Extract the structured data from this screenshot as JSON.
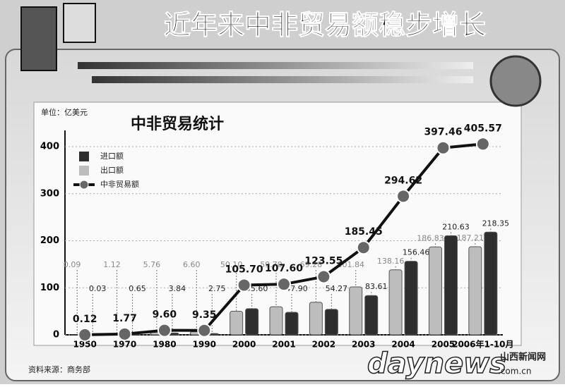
{
  "header": {
    "title": "近年来中非贸易额稳步增长"
  },
  "chart_data": {
    "type": "bar-line",
    "title": "中非贸易统计",
    "unit": "单位：亿美元",
    "categories": [
      "1950",
      "1970",
      "1980",
      "1990",
      "2000",
      "2001",
      "2002",
      "2003",
      "2004",
      "2005",
      "2006年1-10月"
    ],
    "series": [
      {
        "name": "进口额",
        "color": "#2e2e2e",
        "type": "bar",
        "values": [
          0.03,
          0.65,
          3.84,
          2.75,
          55.6,
          47.9,
          54.27,
          83.61,
          156.46,
          210.63,
          218.35
        ],
        "value_labels": [
          "0.03",
          "0.65",
          "3.84",
          "2.75",
          "55.60",
          "47.90",
          "54.27",
          "83.61",
          "156.46",
          "210.63",
          "218.35"
        ]
      },
      {
        "name": "出口额",
        "color": "#bdbdbd",
        "type": "bar",
        "values": [
          0.09,
          1.12,
          5.76,
          6.6,
          50.1,
          59.7,
          69.28,
          101.84,
          138.16,
          186.83,
          187.21
        ],
        "value_labels": [
          "0.09",
          "1.12",
          "5.76",
          "6.60",
          "50.10",
          "59.70",
          "69.28",
          "101.84",
          "138.16",
          "186.83",
          "187.21"
        ]
      },
      {
        "name": "中非贸易额",
        "color": "#111111",
        "type": "line",
        "values": [
          0.12,
          1.77,
          9.6,
          9.35,
          105.7,
          107.6,
          123.55,
          185.45,
          294.62,
          397.46,
          405.57
        ],
        "value_labels": [
          "0.12",
          "1.77",
          "9.60",
          "9.35",
          "105.70",
          "107.60",
          "123.55",
          "185.45",
          "294.62",
          "397.46",
          "405.57"
        ]
      }
    ],
    "ylim": [
      0,
      400
    ],
    "yticks": [
      0,
      100,
      200,
      300,
      400
    ],
    "grid": true
  },
  "footer": {
    "source": "资料来源：商务部",
    "watermark": "daynews",
    "watermark_domain": ".com.cn",
    "watermark_site": "山西新闻网"
  }
}
